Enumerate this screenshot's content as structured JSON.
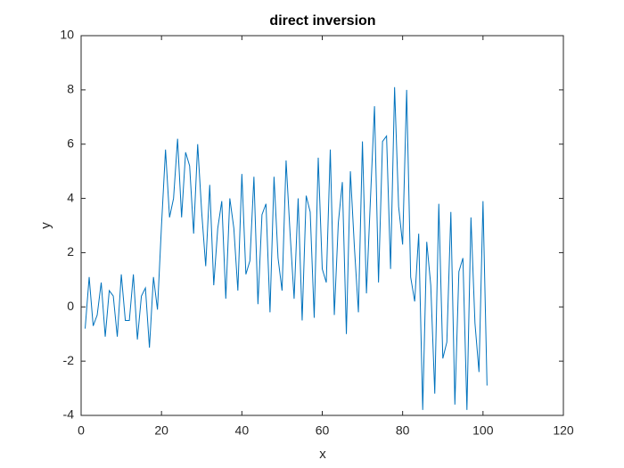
{
  "chart_data": {
    "type": "line",
    "title": "direct inversion",
    "x_label": "x",
    "y_label": "y",
    "x": [
      1,
      2,
      3,
      4,
      5,
      6,
      7,
      8,
      9,
      10,
      11,
      12,
      13,
      14,
      15,
      16,
      17,
      18,
      19,
      20,
      21,
      22,
      23,
      24,
      25,
      26,
      27,
      28,
      29,
      30,
      31,
      32,
      33,
      34,
      35,
      36,
      37,
      38,
      39,
      40,
      41,
      42,
      43,
      44,
      45,
      46,
      47,
      48,
      49,
      50,
      51,
      52,
      53,
      54,
      55,
      56,
      57,
      58,
      59,
      60,
      61,
      62,
      63,
      64,
      65,
      66,
      67,
      68,
      69,
      70,
      71,
      72,
      73,
      74,
      75,
      76,
      77,
      78,
      79,
      80,
      81,
      82,
      83,
      84,
      85,
      86,
      87,
      88,
      89,
      90,
      91,
      92,
      93,
      94,
      95,
      96,
      97,
      98,
      99,
      100,
      101
    ],
    "values": [
      -0.8,
      1.1,
      -0.7,
      -0.3,
      0.9,
      -1.1,
      0.6,
      0.4,
      -1.1,
      1.2,
      -0.5,
      -0.5,
      1.2,
      -1.2,
      0.4,
      0.7,
      -1.5,
      1.1,
      -0.1,
      3.0,
      5.8,
      3.3,
      4.0,
      6.2,
      3.3,
      5.7,
      5.2,
      2.7,
      6.0,
      3.5,
      1.5,
      4.5,
      0.8,
      2.9,
      3.9,
      0.3,
      4.0,
      2.9,
      0.6,
      4.9,
      1.2,
      1.7,
      4.8,
      0.1,
      3.4,
      3.8,
      -0.2,
      4.8,
      1.8,
      0.6,
      5.4,
      2.7,
      0.3,
      4.0,
      -0.5,
      4.1,
      3.5,
      -0.4,
      5.5,
      1.4,
      0.9,
      5.8,
      -0.3,
      3.1,
      4.6,
      -1.0,
      5.0,
      2.2,
      -0.2,
      6.1,
      0.5,
      4.0,
      7.4,
      0.9,
      6.1,
      6.3,
      1.4,
      8.1,
      3.7,
      2.3,
      8.0,
      1.1,
      0.2,
      2.7,
      -3.8,
      2.4,
      0.8,
      -3.2,
      3.8,
      -1.9,
      -1.3,
      3.5,
      -3.6,
      1.3,
      1.8,
      -3.8,
      3.3,
      -0.6,
      -2.4,
      3.9,
      -2.9
    ],
    "color": "#0072bd",
    "xlim": [
      0,
      120
    ],
    "xticks": [
      0,
      20,
      40,
      60,
      80,
      100,
      120
    ],
    "ylim": [
      -4,
      10
    ],
    "yticks": [
      -4,
      -2,
      0,
      2,
      4,
      6,
      8,
      10
    ]
  }
}
